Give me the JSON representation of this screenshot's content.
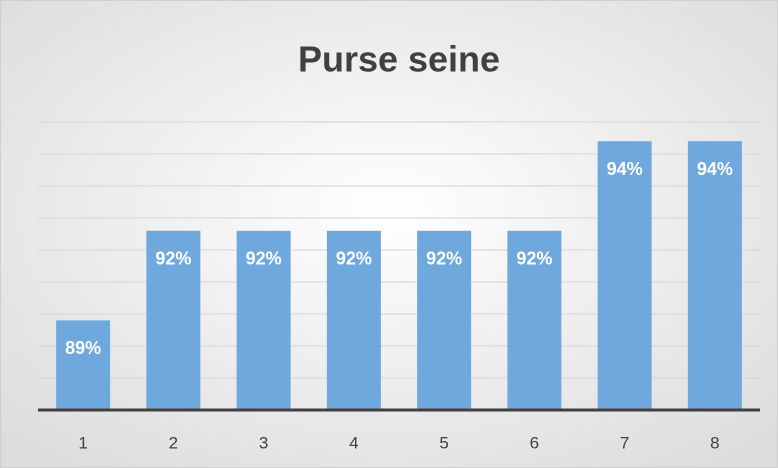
{
  "chart_data": {
    "type": "bar",
    "title": "Purse seine",
    "categories": [
      "1",
      "2",
      "3",
      "4",
      "5",
      "6",
      "7",
      "8"
    ],
    "values": [
      88.8,
      91.6,
      91.6,
      91.6,
      91.6,
      91.6,
      94.4,
      94.4
    ],
    "value_labels": [
      "89%",
      "92%",
      "92%",
      "92%",
      "92%",
      "92%",
      "94%",
      "94%"
    ],
    "color": "#6fa8dc",
    "ylim": [
      86,
      95
    ],
    "yticks": [
      86,
      87,
      88,
      89,
      90,
      91,
      92,
      93,
      94,
      95
    ],
    "grid": true
  }
}
